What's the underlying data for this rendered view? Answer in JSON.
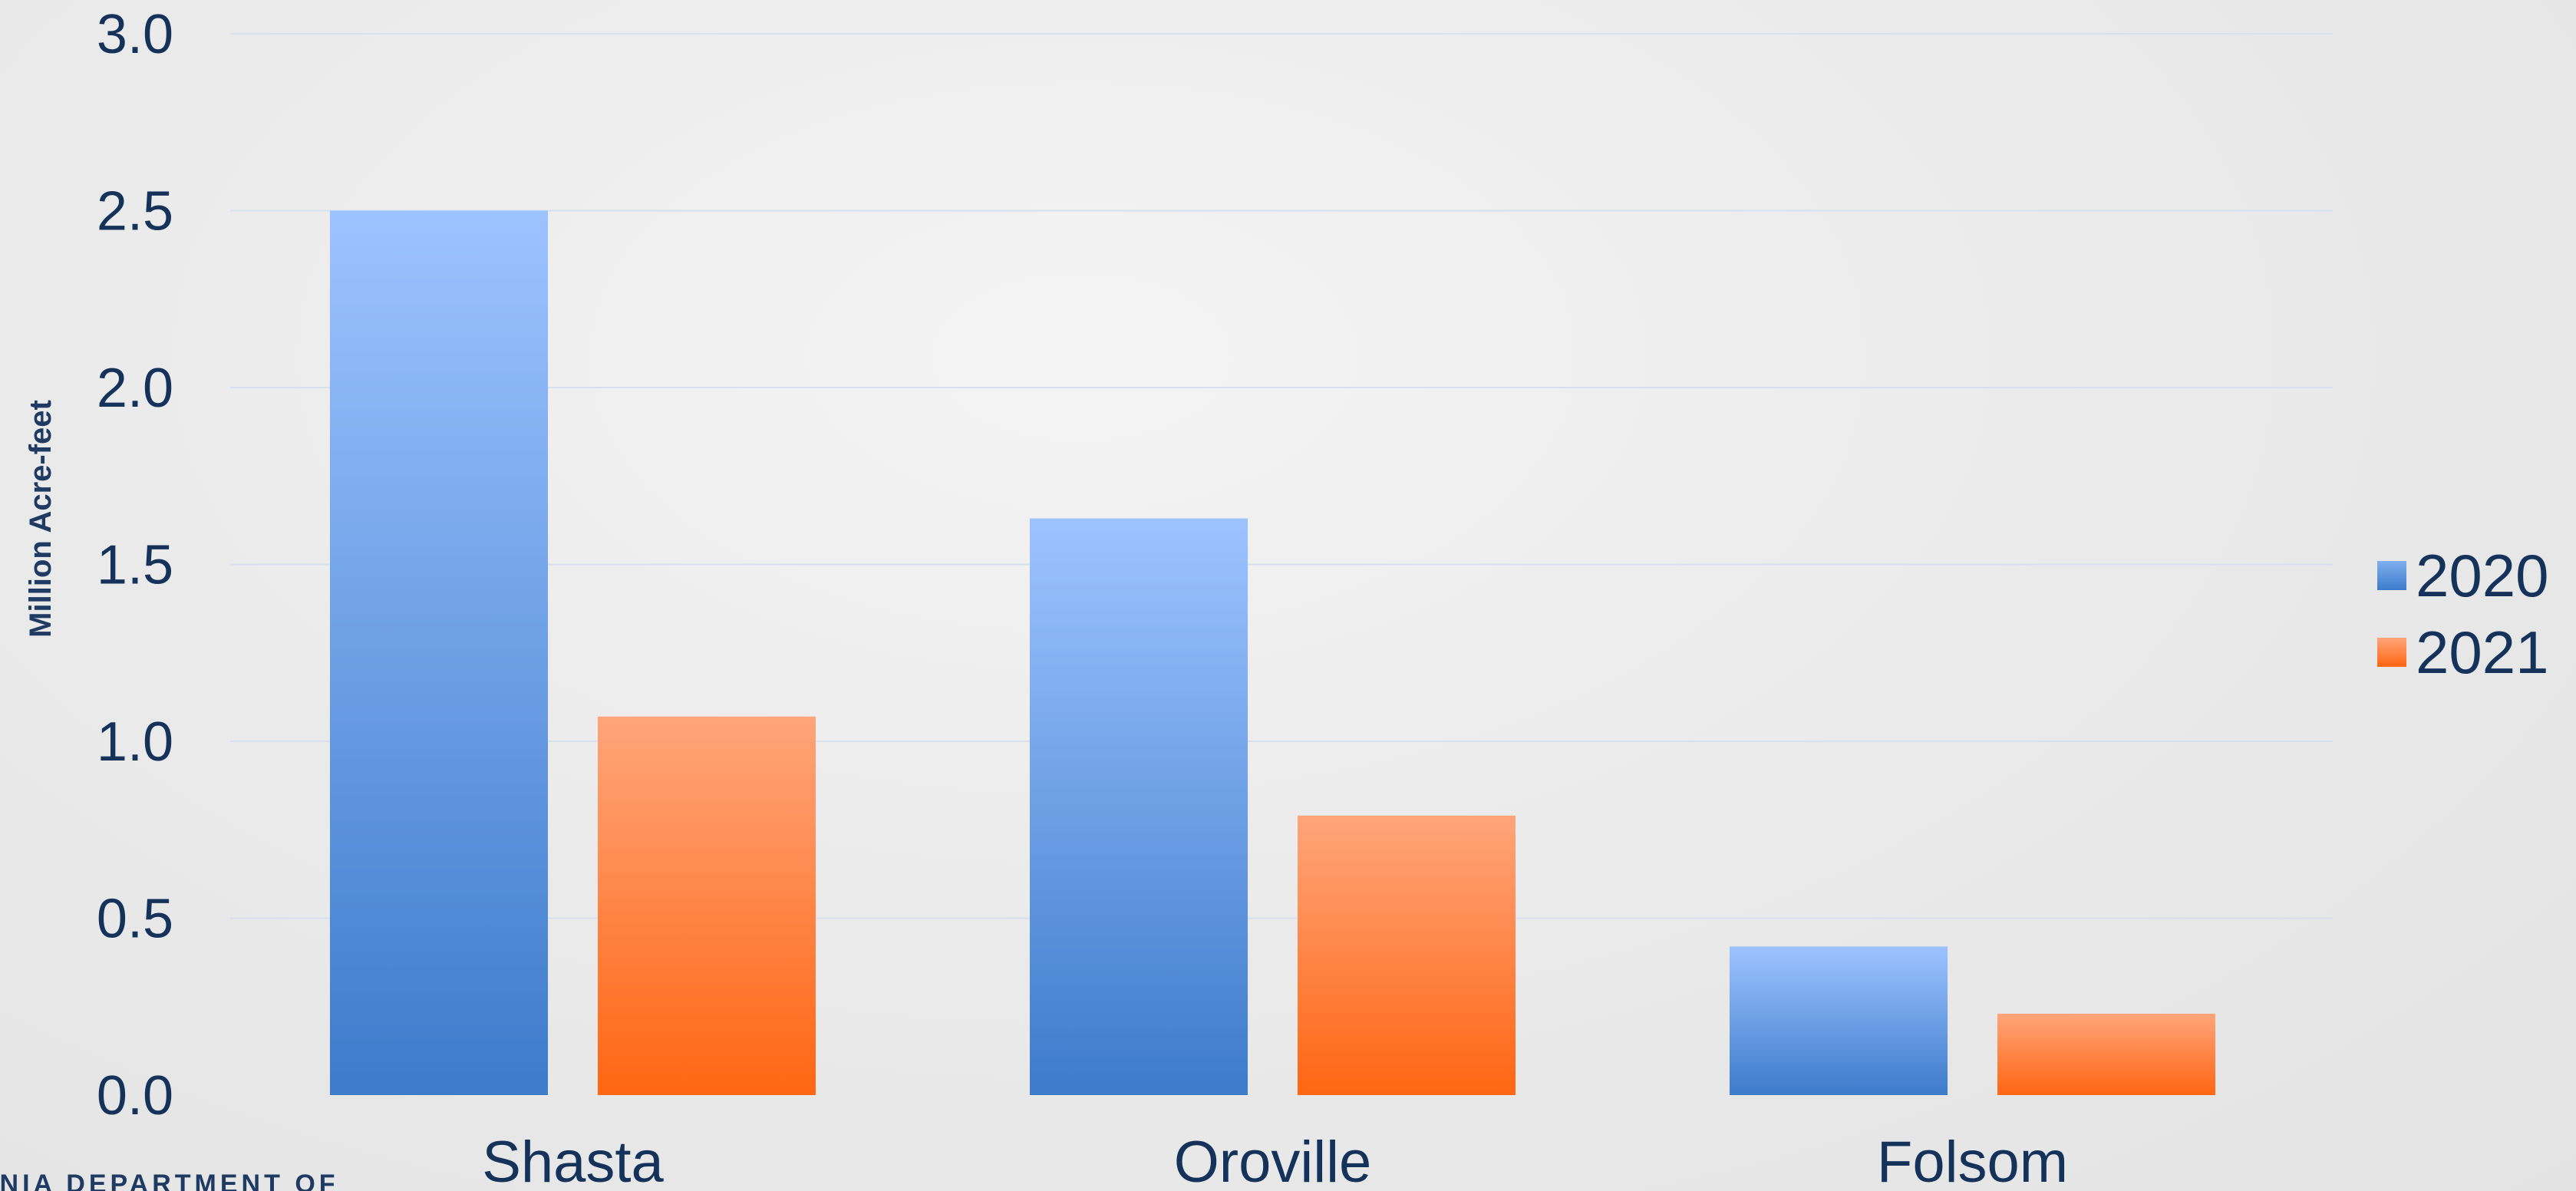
{
  "chart_data": {
    "type": "bar",
    "ylabel": "Million Acre-feet",
    "ylim": [
      0,
      3
    ],
    "yticks": [
      "0.0",
      "0.5",
      "1.0",
      "1.5",
      "2.0",
      "2.5",
      "3.0"
    ],
    "grid": true,
    "legend_position": "right",
    "categories": [
      "Shasta",
      "Oroville",
      "Folsom"
    ],
    "series": [
      {
        "name": "2020",
        "values": [
          2.5,
          1.63,
          0.42
        ],
        "color_top": "#9dc3ff",
        "color_bottom": "#3d7bcb"
      },
      {
        "name": "2021",
        "values": [
          1.07,
          0.79,
          0.23
        ],
        "color_top": "#ffa57a",
        "color_bottom": "#ff6613"
      }
    ]
  },
  "footer": {
    "logo_text": "RNIA DEPARTMENT OF"
  }
}
